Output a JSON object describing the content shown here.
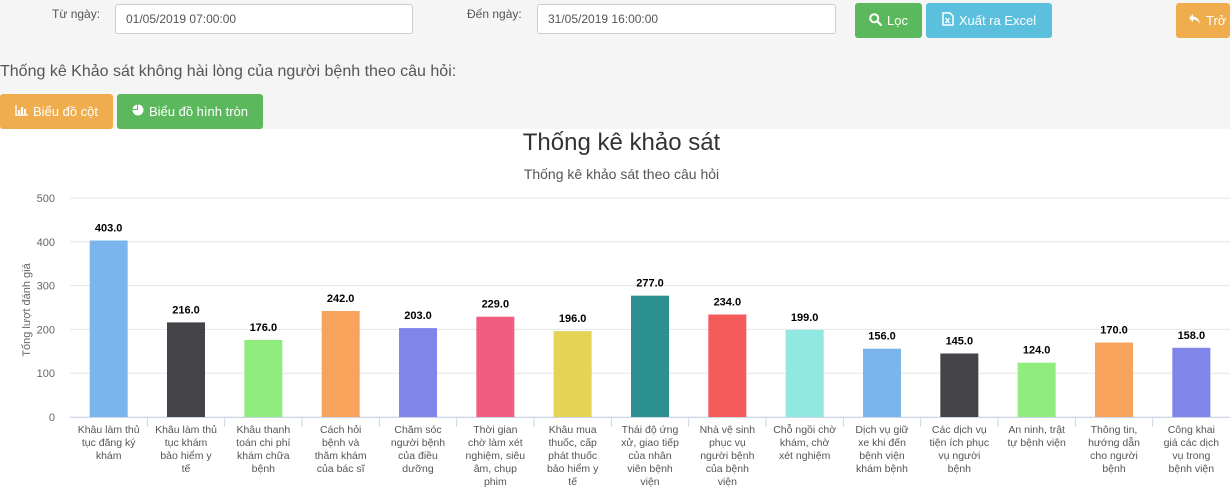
{
  "filters": {
    "from_label": "Từ ngày:",
    "from_value": "01/05/2019 07:00:00",
    "to_label": "Đến ngày:",
    "to_value": "31/05/2019 16:00:00"
  },
  "toolbar": {
    "filter_label": "Lọc",
    "export_label": "Xuất ra Excel",
    "back_label": "Trở"
  },
  "section_title": "Thống kê Khảo sát không hài lòng của người bệnh theo câu hỏi:",
  "chart_buttons": {
    "bar_label": "Biểu đồ cột",
    "pie_label": "Biểu đồ hình tròn"
  },
  "chart_data": {
    "type": "bar",
    "title": "Thống kê khảo sát",
    "subtitle": "Thống kê khảo sát theo câu hỏi",
    "xlabel": "",
    "ylabel": "Tổng lượt đánh giá",
    "ylim": [
      0,
      500
    ],
    "yticks": [
      "0",
      "100",
      "200",
      "300",
      "400",
      "500"
    ],
    "grid": true,
    "categories": [
      [
        "Khâu làm thủ",
        "tục đăng ký",
        "khám"
      ],
      [
        "Khâu làm thủ",
        "tục khám",
        "bảo hiểm y",
        "tế"
      ],
      [
        "Khâu thanh",
        "toán chi phí",
        "khám chữa",
        "bệnh"
      ],
      [
        "Cách hỏi",
        "bệnh và",
        "thăm khám",
        "của bác sĩ"
      ],
      [
        "Chăm sóc",
        "người bệnh",
        "của điều",
        "dưỡng"
      ],
      [
        "Thời gian",
        "chờ làm xét",
        "nghiệm, siêu",
        "âm, chụp",
        "phim"
      ],
      [
        "Khâu mua",
        "thuốc, cấp",
        "phát thuốc",
        "bảo hiểm y",
        "tế"
      ],
      [
        "Thái độ ứng",
        "xử, giao tiếp",
        "của nhân",
        "viên bệnh",
        "viện"
      ],
      [
        "Nhà vệ sinh",
        "phục vụ",
        "người bệnh",
        "của bệnh",
        "viện"
      ],
      [
        "Chỗ ngồi chờ",
        "khám, chờ",
        "xét nghiệm"
      ],
      [
        "Dịch vụ giữ",
        "xe khi đến",
        "bệnh viện",
        "khám bệnh"
      ],
      [
        "Các dịch vụ",
        "tiện ích phục",
        "vụ người",
        "bệnh"
      ],
      [
        "An ninh, trật",
        "tự bệnh viện"
      ],
      [
        "Thông tin,",
        "hướng dẫn",
        "cho người",
        "bệnh"
      ],
      [
        "Công khai",
        "giá các dịch",
        "vụ trong",
        "bệnh viện"
      ]
    ],
    "values": [
      403,
      216,
      176,
      242,
      203,
      229,
      196,
      277,
      234,
      199,
      156,
      145,
      124,
      170,
      158
    ],
    "value_labels": [
      "403.0",
      "216.0",
      "176.0",
      "242.0",
      "203.0",
      "229.0",
      "196.0",
      "277.0",
      "234.0",
      "199.0",
      "156.0",
      "145.0",
      "124.0",
      "170.0",
      "158.0"
    ],
    "colors": [
      "#7cb5ec",
      "#434348",
      "#90ed7d",
      "#f7a35c",
      "#8085e9",
      "#f15c80",
      "#e4d354",
      "#2b908f",
      "#f45b5b",
      "#91e8e1",
      "#7cb5ec",
      "#434348",
      "#90ed7d",
      "#f7a35c",
      "#8085e9"
    ]
  }
}
